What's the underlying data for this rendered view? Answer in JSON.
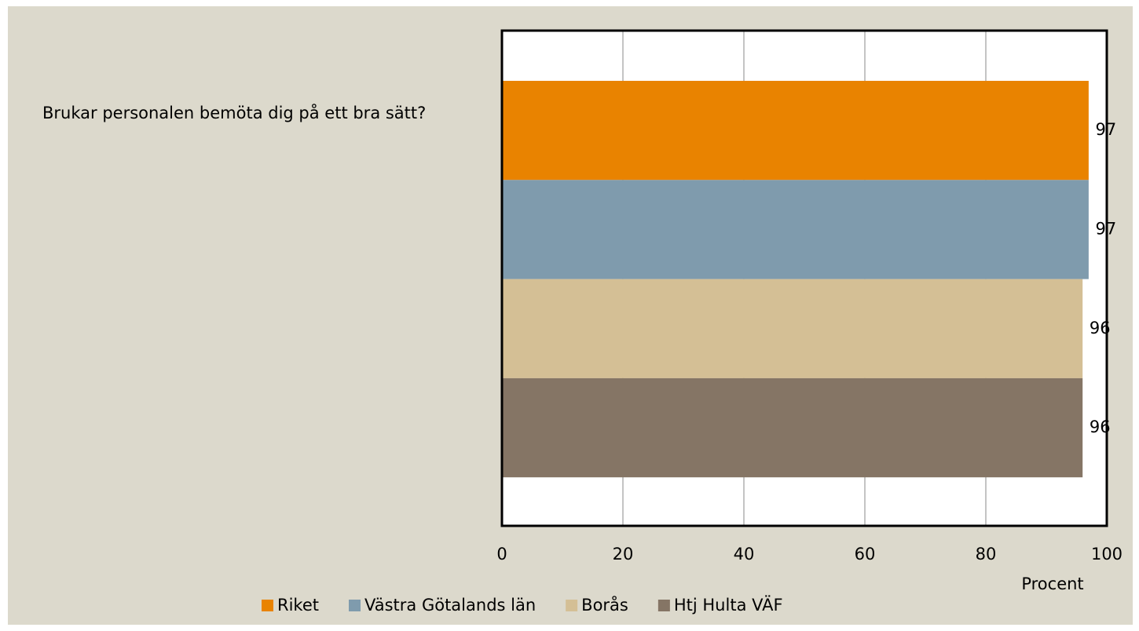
{
  "chart_data": {
    "type": "hbar",
    "categories": [
      "Brukar personalen bemöta dig på ett bra sätt?"
    ],
    "series": [
      {
        "name": "Riket",
        "color": "#e98300",
        "values": [
          97
        ]
      },
      {
        "name": "Västra Götalands län",
        "color": "#7f9bad",
        "values": [
          97
        ]
      },
      {
        "name": "Borås",
        "color": "#d4bf95",
        "values": [
          96
        ]
      },
      {
        "name": "Htj Hulta VÄF",
        "color": "#857565",
        "values": [
          96
        ]
      }
    ],
    "x_label": "Procent",
    "xlim": [
      0,
      100
    ],
    "xticks": [
      0,
      20,
      40,
      60,
      80,
      100
    ],
    "grid": true
  }
}
